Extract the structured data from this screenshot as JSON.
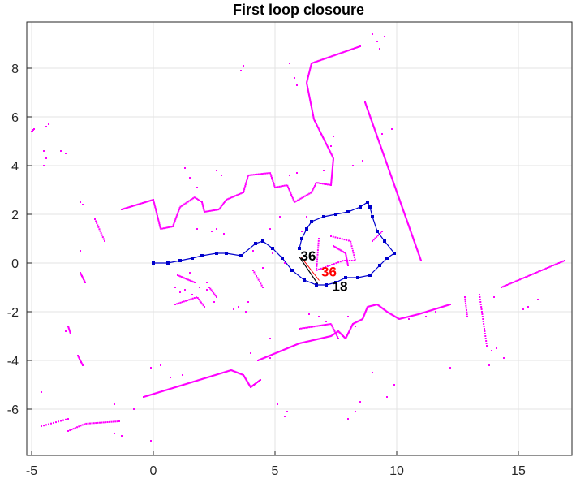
{
  "chart_data": {
    "type": "scatter",
    "title": "First loop closoure",
    "xlabel": "",
    "ylabel": "",
    "xlim": [
      -5.2,
      17.2
    ],
    "ylim": [
      -7.9,
      9.9
    ],
    "xticks": [
      -5,
      0,
      5,
      10,
      15
    ],
    "yticks": [
      -6,
      -4,
      -2,
      0,
      2,
      4,
      6,
      8
    ],
    "xtick_labels": [
      "-5",
      "0",
      "5",
      "10",
      "15"
    ],
    "ytick_labels": [
      "-6",
      "-4",
      "-2",
      "0",
      "2",
      "4",
      "6",
      "8"
    ],
    "grid": true,
    "colors": {
      "scan": "#ff00ff",
      "trajectory": "#0000cc",
      "closure": "#ff0000",
      "label_black": "#000000",
      "label_red": "#ff0000"
    },
    "trajectory": {
      "x": [
        0.0,
        0.6,
        1.1,
        1.6,
        2.0,
        2.6,
        3.0,
        3.6,
        4.2,
        4.5,
        4.9,
        5.3,
        5.7,
        6.2,
        6.7,
        7.1,
        7.5,
        7.9,
        8.4,
        8.9,
        9.3,
        9.6,
        9.9,
        9.5,
        9.2,
        9.0,
        8.9,
        8.8,
        8.5,
        8.0,
        7.5,
        7.0,
        6.5,
        6.3,
        6.1,
        6.0
      ],
      "y": [
        0.0,
        0.0,
        0.1,
        0.2,
        0.3,
        0.4,
        0.4,
        0.3,
        0.8,
        0.9,
        0.6,
        0.2,
        -0.3,
        -0.7,
        -0.9,
        -0.9,
        -0.8,
        -0.6,
        -0.6,
        -0.5,
        -0.1,
        0.2,
        0.4,
        0.9,
        1.3,
        1.9,
        2.3,
        2.5,
        2.3,
        2.1,
        2.0,
        1.9,
        1.7,
        1.4,
        1.0,
        0.6
      ]
    },
    "loop_closure": {
      "from_node": 36,
      "to_node": 18,
      "from": [
        6.0,
        0.25
      ],
      "to": [
        6.75,
        -0.85
      ]
    },
    "node_labels": [
      {
        "text": "36",
        "x": 6.05,
        "y": 0.1,
        "color": "black"
      },
      {
        "text": "36",
        "x": 6.9,
        "y": -0.55,
        "color": "red"
      },
      {
        "text": "18",
        "x": 7.35,
        "y": -1.15,
        "color": "black"
      }
    ],
    "scan_segments": [
      {
        "pts": [
          [
            -1.3,
            2.2
          ],
          [
            0.0,
            2.6
          ]
        ],
        "n": 28
      },
      {
        "pts": [
          [
            0.0,
            2.6
          ],
          [
            0.3,
            1.4
          ],
          [
            0.8,
            1.5
          ],
          [
            1.1,
            2.3
          ],
          [
            1.7,
            2.7
          ],
          [
            2.0,
            2.5
          ]
        ],
        "n": 60
      },
      {
        "pts": [
          [
            2.0,
            2.5
          ],
          [
            2.1,
            2.1
          ],
          [
            2.7,
            2.2
          ],
          [
            3.0,
            2.6
          ],
          [
            3.7,
            2.9
          ]
        ],
        "n": 40
      },
      {
        "pts": [
          [
            3.7,
            2.9
          ],
          [
            3.9,
            3.6
          ],
          [
            4.8,
            3.7
          ],
          [
            5.0,
            3.1
          ],
          [
            5.5,
            3.2
          ],
          [
            5.8,
            2.5
          ],
          [
            6.5,
            2.9
          ],
          [
            6.7,
            3.3
          ],
          [
            7.3,
            3.2
          ]
        ],
        "n": 80
      },
      {
        "pts": [
          [
            7.3,
            3.2
          ],
          [
            7.4,
            4.3
          ],
          [
            6.6,
            5.9
          ],
          [
            6.3,
            7.4
          ],
          [
            6.5,
            8.2
          ],
          [
            8.5,
            8.9
          ]
        ],
        "n": 150
      },
      {
        "pts": [
          [
            8.7,
            6.6
          ],
          [
            11.0,
            0.1
          ]
        ],
        "n": 170
      },
      {
        "pts": [
          [
            6.8,
            1.0
          ],
          [
            6.7,
            -0.3
          ],
          [
            7.8,
            0.1
          ],
          [
            8.3,
            0.1
          ],
          [
            8.1,
            0.9
          ],
          [
            7.3,
            1.1
          ]
        ],
        "n": 50
      },
      {
        "pts": [
          [
            7.4,
            0.7
          ],
          [
            7.9,
            0.4
          ],
          [
            8.0,
            -0.1
          ]
        ],
        "n": 20
      },
      {
        "pts": [
          [
            4.3,
            -4.0
          ],
          [
            6.0,
            -3.3
          ],
          [
            7.3,
            -3.0
          ],
          [
            7.6,
            -2.8
          ],
          [
            7.9,
            -3.1
          ],
          [
            8.2,
            -2.5
          ],
          [
            8.6,
            -2.3
          ],
          [
            8.8,
            -1.8
          ],
          [
            9.2,
            -1.7
          ],
          [
            9.6,
            -2.0
          ],
          [
            10.1,
            -2.3
          ],
          [
            10.9,
            -2.1
          ],
          [
            12.2,
            -1.7
          ]
        ],
        "n": 230
      },
      {
        "pts": [
          [
            6.0,
            -2.7
          ],
          [
            7.3,
            -2.5
          ],
          [
            7.6,
            -3.1
          ]
        ],
        "n": 30
      },
      {
        "pts": [
          [
            -0.4,
            -5.5
          ],
          [
            3.2,
            -4.4
          ],
          [
            3.7,
            -4.6
          ],
          [
            4.0,
            -5.1
          ],
          [
            4.4,
            -4.8
          ]
        ],
        "n": 130
      },
      {
        "pts": [
          [
            14.3,
            -1.0
          ],
          [
            16.9,
            0.1
          ]
        ],
        "n": 45
      },
      {
        "pts": [
          [
            -5.0,
            5.4
          ],
          [
            -4.9,
            5.5
          ]
        ],
        "n": 4
      },
      {
        "pts": [
          [
            -3.5,
            -6.9
          ],
          [
            -2.8,
            -6.6
          ],
          [
            -1.4,
            -6.5
          ]
        ],
        "n": 28
      },
      {
        "pts": [
          [
            -4.6,
            -6.7
          ],
          [
            -3.5,
            -6.4
          ]
        ],
        "n": 12
      },
      {
        "pts": [
          [
            -2.4,
            1.8
          ],
          [
            -2.0,
            0.9
          ]
        ],
        "n": 12
      },
      {
        "pts": [
          [
            -3.0,
            -0.4
          ],
          [
            -2.8,
            -0.8
          ]
        ],
        "n": 10
      },
      {
        "pts": [
          [
            -3.1,
            -3.8
          ],
          [
            -2.9,
            -4.2
          ]
        ],
        "n": 10
      },
      {
        "pts": [
          [
            -3.5,
            -2.6
          ],
          [
            -3.4,
            -2.9
          ]
        ],
        "n": 8
      },
      {
        "pts": [
          [
            12.8,
            -1.4
          ],
          [
            12.9,
            -2.2
          ]
        ],
        "n": 10
      },
      {
        "pts": [
          [
            13.4,
            -1.3
          ],
          [
            13.7,
            -3.4
          ]
        ],
        "n": 22
      },
      {
        "pts": [
          [
            1.0,
            -0.5
          ],
          [
            1.7,
            -0.8
          ]
        ],
        "n": 14
      },
      {
        "pts": [
          [
            0.9,
            -1.7
          ],
          [
            1.8,
            -1.4
          ],
          [
            2.1,
            -1.8
          ]
        ],
        "n": 20
      },
      {
        "pts": [
          [
            2.3,
            -1.0
          ],
          [
            2.6,
            -1.4
          ]
        ],
        "n": 8
      },
      {
        "pts": [
          [
            4.1,
            -0.3
          ],
          [
            4.5,
            -1.0
          ]
        ],
        "n": 10
      },
      {
        "pts": [
          [
            9.0,
            0.9
          ],
          [
            9.4,
            1.3
          ]
        ],
        "n": 8
      }
    ],
    "scan_points": [
      [
        -4.3,
        5.7
      ],
      [
        -4.4,
        5.6
      ],
      [
        -4.5,
        4.6
      ],
      [
        -4.4,
        4.3
      ],
      [
        -4.5,
        4.0
      ],
      [
        -3.8,
        4.6
      ],
      [
        -3.6,
        4.5
      ],
      [
        -3.0,
        2.5
      ],
      [
        -2.9,
        2.4
      ],
      [
        -3.0,
        0.5
      ],
      [
        -4.6,
        -5.3
      ],
      [
        -3.6,
        -2.8
      ],
      [
        -1.6,
        -5.8
      ],
      [
        -0.8,
        -6.0
      ],
      [
        -0.1,
        -7.3
      ],
      [
        -1.3,
        -7.1
      ],
      [
        -1.6,
        -7.0
      ],
      [
        1.3,
        3.9
      ],
      [
        1.5,
        3.5
      ],
      [
        1.8,
        3.1
      ],
      [
        2.6,
        3.8
      ],
      [
        2.8,
        3.6
      ],
      [
        3.6,
        7.9
      ],
      [
        3.7,
        8.1
      ],
      [
        5.6,
        8.2
      ],
      [
        5.8,
        7.6
      ],
      [
        5.9,
        7.3
      ],
      [
        4.1,
        0.5
      ],
      [
        4.9,
        0.4
      ],
      [
        5.4,
        0.0
      ],
      [
        4.5,
        -0.2
      ],
      [
        1.8,
        1.4
      ],
      [
        2.4,
        1.3
      ],
      [
        2.6,
        1.4
      ],
      [
        2.9,
        1.2
      ],
      [
        4.8,
        1.4
      ],
      [
        5.2,
        1.9
      ],
      [
        5.6,
        3.6
      ],
      [
        5.9,
        3.7
      ],
      [
        6.1,
        1.3
      ],
      [
        6.3,
        1.9
      ],
      [
        7.0,
        3.8
      ],
      [
        7.3,
        4.8
      ],
      [
        7.4,
        5.2
      ],
      [
        9.4,
        5.3
      ],
      [
        9.8,
        5.5
      ],
      [
        8.2,
        4.0
      ],
      [
        8.6,
        4.2
      ],
      [
        9.0,
        9.4
      ],
      [
        9.2,
        9.1
      ],
      [
        9.3,
        8.8
      ],
      [
        9.5,
        9.3
      ],
      [
        -0.1,
        -4.3
      ],
      [
        0.3,
        -4.2
      ],
      [
        0.7,
        -4.7
      ],
      [
        1.2,
        -4.6
      ],
      [
        4.0,
        -3.7
      ],
      [
        4.8,
        -3.1
      ],
      [
        4.8,
        -3.9
      ],
      [
        5.1,
        -5.8
      ],
      [
        5.4,
        -6.3
      ],
      [
        5.5,
        -6.1
      ],
      [
        8.0,
        -6.4
      ],
      [
        8.3,
        -6.1
      ],
      [
        8.5,
        -5.7
      ],
      [
        9.6,
        -5.5
      ],
      [
        9.9,
        -5.0
      ],
      [
        9.0,
        -4.5
      ],
      [
        12.2,
        -4.3
      ],
      [
        14.1,
        -3.5
      ],
      [
        14.0,
        -1.4
      ],
      [
        15.2,
        -1.9
      ],
      [
        15.4,
        -1.8
      ],
      [
        15.8,
        -1.5
      ],
      [
        14.4,
        -3.9
      ],
      [
        13.8,
        -4.2
      ],
      [
        13.9,
        -3.6
      ],
      [
        6.4,
        -2.1
      ],
      [
        6.8,
        -2.2
      ],
      [
        7.1,
        -2.4
      ],
      [
        8.0,
        -2.2
      ],
      [
        8.3,
        -2.6
      ],
      [
        10.5,
        -2.3
      ],
      [
        11.2,
        -2.2
      ],
      [
        11.6,
        -2.0
      ],
      [
        0.9,
        -1.0
      ],
      [
        1.1,
        -1.2
      ],
      [
        1.3,
        -1.1
      ],
      [
        1.5,
        -0.4
      ],
      [
        1.6,
        -1.3
      ],
      [
        1.9,
        -1.0
      ],
      [
        2.2,
        -0.8
      ],
      [
        2.2,
        -1.1
      ],
      [
        2.5,
        -1.6
      ],
      [
        3.8,
        -2.0
      ],
      [
        3.9,
        -1.6
      ],
      [
        3.5,
        -1.8
      ],
      [
        3.3,
        -1.9
      ]
    ]
  }
}
